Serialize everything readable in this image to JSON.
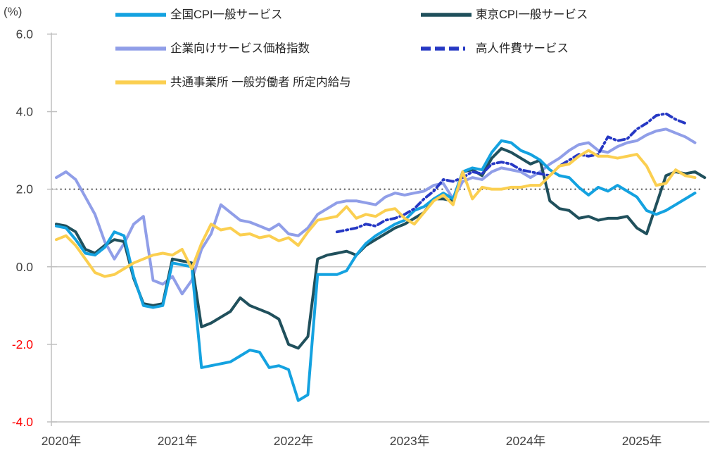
{
  "y_axis": {
    "unit_label": "(%)",
    "ticks": [
      {
        "label": "6.0",
        "value": 6,
        "color": "#404040"
      },
      {
        "label": "4.0",
        "value": 4,
        "color": "#404040"
      },
      {
        "label": "2.0",
        "value": 2,
        "color": "#404040"
      },
      {
        "label": "0.0",
        "value": 0,
        "color": "#404040"
      },
      {
        "label": "-2.0",
        "value": -2,
        "color": "#FF0000"
      },
      {
        "label": "-4.0",
        "value": -4,
        "color": "#FF0000"
      }
    ]
  },
  "x_axis": {
    "labels": [
      "2020年",
      "2021年",
      "2022年",
      "2023年",
      "2024年",
      "2025年"
    ]
  },
  "reference_lines": [
    {
      "value": 2.0,
      "style": "dotted",
      "color": "#616161"
    },
    {
      "value": 0.0,
      "style": "solid",
      "color": "#C6C6C6"
    }
  ],
  "chart_data": {
    "type": "line",
    "x_start": "2020-01",
    "x_interval": "month",
    "ylim": [
      -4.0,
      6.0
    ],
    "grid": false,
    "legend_position": "top",
    "series": [
      {
        "key": "national-cpi-general-services",
        "name": "全国CPI一般サービス",
        "color": "#14A2E0",
        "dash": false,
        "start_month_index": 0,
        "values": [
          1.05,
          1.0,
          0.7,
          0.35,
          0.3,
          0.5,
          0.9,
          0.8,
          -0.25,
          -1.0,
          -1.05,
          -1.0,
          0.1,
          0.05,
          0.0,
          -2.6,
          -2.55,
          -2.5,
          -2.45,
          -2.3,
          -2.15,
          -2.2,
          -2.6,
          -2.55,
          -2.65,
          -3.45,
          -3.3,
          -0.2,
          -0.2,
          -0.2,
          -0.1,
          0.3,
          0.6,
          0.8,
          0.95,
          1.1,
          1.2,
          1.45,
          1.55,
          1.75,
          1.9,
          1.75,
          2.45,
          2.55,
          2.5,
          2.95,
          3.25,
          3.2,
          3.0,
          2.9,
          2.75,
          2.5,
          2.35,
          2.3,
          2.05,
          1.85,
          2.05,
          1.95,
          2.1,
          1.95,
          1.8,
          1.45,
          1.35,
          1.45,
          1.6,
          1.75,
          1.9
        ]
      },
      {
        "key": "tokyo-cpi-general-services",
        "name": "東京CPI一般サービス",
        "color": "#20505C",
        "dash": false,
        "start_month_index": 0,
        "values": [
          1.1,
          1.05,
          0.9,
          0.45,
          0.35,
          0.55,
          0.7,
          0.65,
          -0.3,
          -0.95,
          -1.0,
          -0.95,
          0.2,
          0.15,
          0.1,
          -1.55,
          -1.45,
          -1.3,
          -1.15,
          -0.8,
          -1.0,
          -1.1,
          -1.2,
          -1.35,
          -2.0,
          -2.1,
          -1.8,
          0.2,
          0.3,
          0.35,
          0.4,
          0.3,
          0.55,
          0.7,
          0.85,
          1.0,
          1.1,
          1.25,
          1.4,
          1.75,
          1.75,
          1.7,
          2.45,
          2.5,
          2.35,
          2.8,
          3.05,
          2.95,
          2.8,
          2.65,
          2.75,
          1.7,
          1.5,
          1.45,
          1.25,
          1.3,
          1.2,
          1.25,
          1.25,
          1.3,
          1.0,
          0.85,
          1.6,
          2.35,
          2.45,
          2.4,
          2.45,
          2.3
        ]
      },
      {
        "key": "services-ppi",
        "name": "企業向けサービス価格指数",
        "color": "#909EE8",
        "dash": false,
        "start_month_index": 0,
        "values": [
          2.3,
          2.45,
          2.25,
          1.8,
          1.35,
          0.65,
          0.2,
          0.6,
          1.1,
          1.3,
          -0.35,
          -0.45,
          -0.25,
          -0.7,
          -0.35,
          0.45,
          0.85,
          1.6,
          1.4,
          1.2,
          1.15,
          1.05,
          0.95,
          1.1,
          0.85,
          0.8,
          1.0,
          1.35,
          1.5,
          1.65,
          1.7,
          1.7,
          1.65,
          1.6,
          1.8,
          1.9,
          1.85,
          1.9,
          1.95,
          2.1,
          2.15,
          1.75,
          2.2,
          2.3,
          2.25,
          2.45,
          2.55,
          2.5,
          2.45,
          2.3,
          2.45,
          2.65,
          2.8,
          3.0,
          3.15,
          3.2,
          3.0,
          2.95,
          3.1,
          3.2,
          3.25,
          3.4,
          3.5,
          3.55,
          3.45,
          3.35,
          3.2
        ]
      },
      {
        "key": "high-labor-cost-services",
        "name": "高人件費サービス",
        "color": "#2638C4",
        "dash": true,
        "start_month_index": 29,
        "values": [
          0.9,
          0.95,
          1.0,
          1.1,
          1.05,
          1.2,
          1.25,
          1.35,
          1.5,
          1.75,
          1.95,
          2.25,
          2.2,
          2.3,
          2.45,
          2.4,
          2.65,
          2.7,
          2.65,
          2.5,
          2.45,
          2.4,
          2.35,
          2.6,
          2.75,
          2.9,
          2.85,
          2.9,
          3.35,
          3.25,
          3.3,
          3.55,
          3.7,
          3.9,
          3.95,
          3.8,
          3.7
        ]
      },
      {
        "key": "scheduled-wages-common-establishments",
        "name": "共通事業所 一般労働者 所定内給与",
        "color": "#FBCF50",
        "dash": false,
        "start_month_index": 0,
        "values": [
          0.7,
          0.8,
          0.55,
          0.2,
          -0.15,
          -0.25,
          -0.2,
          -0.05,
          0.1,
          0.2,
          0.3,
          0.35,
          0.3,
          0.45,
          -0.05,
          0.6,
          1.1,
          0.95,
          1.0,
          0.82,
          0.85,
          0.75,
          0.8,
          0.67,
          0.75,
          0.55,
          0.9,
          1.2,
          1.25,
          1.3,
          1.55,
          1.25,
          1.35,
          1.3,
          1.45,
          1.5,
          1.25,
          1.1,
          1.4,
          1.7,
          1.85,
          1.6,
          2.45,
          1.75,
          2.05,
          2.0,
          2.0,
          2.05,
          2.05,
          2.1,
          2.1,
          2.35,
          2.6,
          2.65,
          2.85,
          3.0,
          2.85,
          2.85,
          2.8,
          2.85,
          2.9,
          2.6,
          2.1,
          2.15,
          2.5,
          2.35,
          2.3
        ]
      }
    ]
  }
}
